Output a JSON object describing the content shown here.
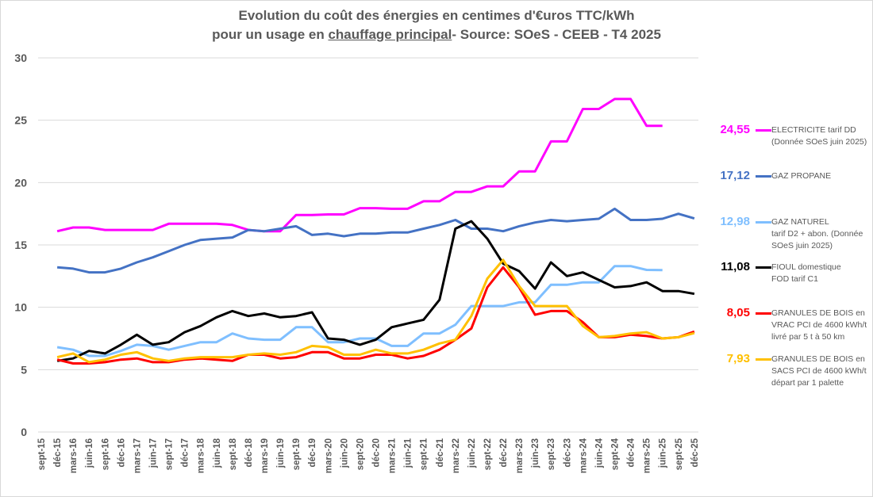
{
  "chart_data": {
    "type": "line",
    "title_line1": "Evolution du coût des énergies en centimes d'€uros TTC/kWh",
    "title_line2_pre": "pour un usage en ",
    "title_line2_underlined": "chauffage principal",
    "title_line2_post": "- Source: SOeS - CEEB - T4 2025",
    "ylim": [
      0,
      30
    ],
    "yticks": [
      "0",
      "5",
      "10",
      "15",
      "20",
      "25",
      "30"
    ],
    "grid": true,
    "legend_placement": "right",
    "x_tick_labels": [
      "sept-15",
      "déc-15",
      "mars-16",
      "juin-16",
      "sept-16",
      "déc-16",
      "mars-17",
      "juin-17",
      "sept-17",
      "déc-17",
      "mars-18",
      "juin-18",
      "sept-18",
      "déc-18",
      "mars-19",
      "juin-19",
      "sept-19",
      "déc-19",
      "mars-20",
      "juin-20",
      "sept-20",
      "déc-20",
      "mars-21",
      "juin-21",
      "sept-21",
      "déc-21",
      "mars-22",
      "juin-22",
      "sept-22",
      "déc-22",
      "mars-23",
      "juin-23",
      "sept-23",
      "déc-23",
      "mars-24",
      "juin-24",
      "sept-24",
      "déc-24",
      "mars-25",
      "juin-25",
      "sept-25",
      "déc-25"
    ],
    "x": [
      "déc-15",
      "mars-16",
      "juin-16",
      "sept-16",
      "déc-16",
      "mars-17",
      "juin-17",
      "sept-17",
      "déc-17",
      "mars-18",
      "juin-18",
      "sept-18",
      "déc-18",
      "mars-19",
      "juin-19",
      "sept-19",
      "déc-19",
      "mars-20",
      "juin-20",
      "sept-20",
      "déc-20",
      "mars-21",
      "juin-21",
      "sept-21",
      "déc-21",
      "mars-22",
      "juin-22",
      "sept-22",
      "déc-22",
      "mars-23",
      "juin-23",
      "sept-23",
      "déc-23",
      "mars-24",
      "juin-24",
      "sept-24",
      "déc-24",
      "mars-25",
      "juin-25",
      "sept-25",
      "déc-25"
    ],
    "series": [
      {
        "name": "ELECTRICITE tarif DD\n(Donnée SOeS juin 2025)",
        "last_label": "24,55",
        "color": "#ff00ff",
        "values": [
          16.1,
          16.4,
          16.4,
          16.2,
          16.2,
          16.2,
          16.2,
          16.7,
          16.7,
          16.7,
          16.7,
          16.6,
          16.2,
          16.1,
          16.1,
          17.4,
          17.4,
          17.45,
          17.45,
          17.95,
          17.95,
          17.9,
          17.9,
          18.5,
          18.5,
          19.25,
          19.25,
          19.7,
          19.7,
          20.9,
          20.9,
          23.3,
          23.3,
          25.9,
          25.9,
          26.7,
          26.7,
          24.55,
          24.55,
          null,
          null
        ]
      },
      {
        "name": "GAZ PROPANE",
        "last_label": "17,12",
        "color": "#4472c4",
        "values": [
          13.2,
          13.1,
          12.8,
          12.8,
          13.1,
          13.6,
          14.0,
          14.5,
          15.0,
          15.4,
          15.5,
          15.6,
          16.2,
          16.1,
          16.3,
          16.5,
          15.8,
          15.9,
          15.7,
          15.9,
          15.9,
          16.0,
          16.0,
          16.3,
          16.6,
          17.0,
          16.3,
          16.3,
          16.1,
          16.5,
          16.8,
          17.0,
          16.9,
          17.0,
          17.1,
          17.9,
          17.0,
          17.0,
          17.1,
          17.5,
          17.12
        ]
      },
      {
        "name": "GAZ NATUREL\ntarif D2 + abon. (Donnée\nSOeS juin 2025)",
        "last_label": "12,98",
        "color": "#7fbfff",
        "values": [
          6.8,
          6.6,
          6.1,
          6.1,
          6.5,
          7.0,
          6.9,
          6.6,
          6.9,
          7.2,
          7.2,
          7.9,
          7.5,
          7.4,
          7.4,
          8.4,
          8.4,
          7.2,
          7.2,
          7.5,
          7.5,
          6.9,
          6.9,
          7.9,
          7.9,
          8.6,
          10.1,
          10.1,
          10.1,
          10.4,
          10.4,
          11.8,
          11.8,
          12.0,
          12.0,
          13.3,
          13.3,
          13.0,
          12.98,
          null,
          null
        ]
      },
      {
        "name": "FIOUL domestique\nFOD tarif C1",
        "last_label": "11,08",
        "color": "#000000",
        "values": [
          5.7,
          5.9,
          6.5,
          6.3,
          7.0,
          7.8,
          7.0,
          7.2,
          8.0,
          8.5,
          9.2,
          9.7,
          9.3,
          9.5,
          9.2,
          9.3,
          9.6,
          7.5,
          7.4,
          7.0,
          7.4,
          8.4,
          8.7,
          9.0,
          10.6,
          16.3,
          16.9,
          15.5,
          13.5,
          12.9,
          11.5,
          13.6,
          12.5,
          12.8,
          12.2,
          11.6,
          11.7,
          12.0,
          11.3,
          11.3,
          11.08
        ]
      },
      {
        "name": "GRANULES DE BOIS en\nVRAC  PCI de 4600 kWh/t\nlivré par 5 t à 50 km",
        "last_label": "8,05",
        "color": "#ff0000",
        "values": [
          5.8,
          5.5,
          5.5,
          5.6,
          5.8,
          5.9,
          5.6,
          5.6,
          5.8,
          5.9,
          5.8,
          5.7,
          6.2,
          6.2,
          5.9,
          6.0,
          6.4,
          6.4,
          5.9,
          5.9,
          6.2,
          6.2,
          5.9,
          6.1,
          6.6,
          7.4,
          8.3,
          11.6,
          13.2,
          11.6,
          9.4,
          9.7,
          9.7,
          8.8,
          7.6,
          7.6,
          7.8,
          7.7,
          7.5,
          7.6,
          8.05
        ]
      },
      {
        "name": "GRANULES DE BOIS en\nSACS PCI de 4600 kWh/t\ndépart par 1 palette",
        "last_label": "7,93",
        "color": "#ffc000",
        "values": [
          6.0,
          6.3,
          5.6,
          5.8,
          6.2,
          6.4,
          5.9,
          5.7,
          5.9,
          6.0,
          6.0,
          6.0,
          6.2,
          6.3,
          6.2,
          6.4,
          6.9,
          6.8,
          6.2,
          6.2,
          6.6,
          6.3,
          6.3,
          6.6,
          7.1,
          7.4,
          9.3,
          12.3,
          13.8,
          11.7,
          10.1,
          10.1,
          10.1,
          8.5,
          7.6,
          7.7,
          7.9,
          8.0,
          7.5,
          7.6,
          7.93
        ]
      }
    ]
  }
}
